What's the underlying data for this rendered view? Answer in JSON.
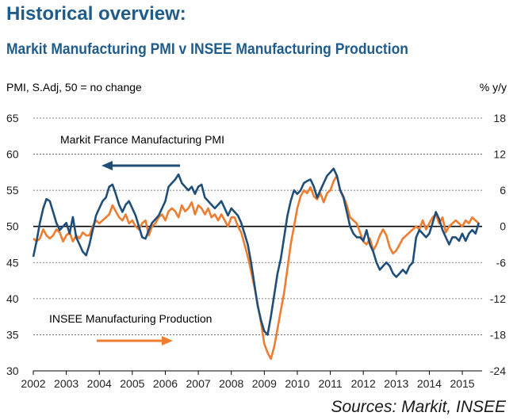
{
  "header": {
    "title": "Historical overview:",
    "subtitle": "Markit Manufacturing PMI v INSEE Manufacturing Production"
  },
  "footer": {
    "sources": "Sources: Markit, INSEE"
  },
  "colors": {
    "title": "#1f5c8b",
    "pmi": "#1f4e79",
    "insee": "#ed7d31",
    "grid": "#555555",
    "zero": "#000000"
  },
  "chart_data": {
    "type": "line",
    "title": "Markit Manufacturing PMI v INSEE Manufacturing Production",
    "left_axis_label": "PMI, S.Adj, 50 = no change",
    "right_axis_label": "% y/y",
    "left_ylim": [
      30,
      65
    ],
    "right_ylim": [
      -24,
      18
    ],
    "left_ticks": [
      "65",
      "60",
      "55",
      "50",
      "45",
      "40",
      "35",
      "30"
    ],
    "right_ticks": [
      "18",
      "12",
      "6",
      "0",
      "-6",
      "-12",
      "-18",
      "-24"
    ],
    "x_ticks": [
      "2002",
      "2003",
      "2004",
      "2005",
      "2006",
      "2007",
      "2008",
      "2009",
      "2010",
      "2011",
      "2012",
      "2013",
      "2014",
      "2015"
    ],
    "x_range": [
      2002.0,
      2015.6
    ],
    "grid": "horizontal dashed",
    "annotations": [
      {
        "text": "Markit France Manufacturing PMI",
        "arrow": "left"
      },
      {
        "text": "INSEE Manufacturing Production",
        "arrow": "right"
      }
    ],
    "series": [
      {
        "name": "Markit France Manufacturing PMI",
        "axis": "left",
        "points": [
          [
            2002.0,
            45.8
          ],
          [
            2002.1,
            48.0
          ],
          [
            2002.2,
            50.5
          ],
          [
            2002.3,
            52.5
          ],
          [
            2002.4,
            53.8
          ],
          [
            2002.5,
            53.5
          ],
          [
            2002.6,
            52.0
          ],
          [
            2002.7,
            50.5
          ],
          [
            2002.8,
            49.5
          ],
          [
            2002.9,
            50.0
          ],
          [
            2003.0,
            50.5
          ],
          [
            2003.1,
            49.0
          ],
          [
            2003.2,
            51.3
          ],
          [
            2003.3,
            48.5
          ],
          [
            2003.4,
            47.5
          ],
          [
            2003.5,
            46.5
          ],
          [
            2003.6,
            46.0
          ],
          [
            2003.7,
            47.5
          ],
          [
            2003.8,
            49.5
          ],
          [
            2003.9,
            51.5
          ],
          [
            2004.0,
            52.5
          ],
          [
            2004.1,
            53.5
          ],
          [
            2004.2,
            54.0
          ],
          [
            2004.3,
            55.5
          ],
          [
            2004.4,
            55.8
          ],
          [
            2004.5,
            54.5
          ],
          [
            2004.6,
            53.0
          ],
          [
            2004.7,
            52.0
          ],
          [
            2004.8,
            53.0
          ],
          [
            2004.9,
            53.5
          ],
          [
            2005.0,
            52.5
          ],
          [
            2005.1,
            51.5
          ],
          [
            2005.2,
            50.0
          ],
          [
            2005.3,
            48.5
          ],
          [
            2005.4,
            48.3
          ],
          [
            2005.5,
            49.5
          ],
          [
            2005.6,
            50.5
          ],
          [
            2005.7,
            51.0
          ],
          [
            2005.8,
            51.5
          ],
          [
            2005.9,
            52.5
          ],
          [
            2006.0,
            53.5
          ],
          [
            2006.1,
            55.5
          ],
          [
            2006.2,
            56.0
          ],
          [
            2006.3,
            56.5
          ],
          [
            2006.4,
            57.2
          ],
          [
            2006.5,
            56.0
          ],
          [
            2006.6,
            55.5
          ],
          [
            2006.7,
            55.0
          ],
          [
            2006.8,
            55.5
          ],
          [
            2006.9,
            54.5
          ],
          [
            2007.0,
            55.5
          ],
          [
            2007.1,
            55.8
          ],
          [
            2007.2,
            54.0
          ],
          [
            2007.3,
            53.5
          ],
          [
            2007.4,
            53.0
          ],
          [
            2007.5,
            52.5
          ],
          [
            2007.6,
            53.0
          ],
          [
            2007.7,
            53.5
          ],
          [
            2007.8,
            52.5
          ],
          [
            2007.9,
            51.5
          ],
          [
            2008.0,
            52.5
          ],
          [
            2008.1,
            52.0
          ],
          [
            2008.2,
            51.5
          ],
          [
            2008.3,
            50.5
          ],
          [
            2008.4,
            49.0
          ],
          [
            2008.5,
            47.5
          ],
          [
            2008.6,
            45.0
          ],
          [
            2008.7,
            42.0
          ],
          [
            2008.8,
            39.0
          ],
          [
            2008.9,
            37.0
          ],
          [
            2009.0,
            35.5
          ],
          [
            2009.1,
            35.0
          ],
          [
            2009.2,
            37.5
          ],
          [
            2009.3,
            40.5
          ],
          [
            2009.4,
            43.5
          ],
          [
            2009.5,
            45.5
          ],
          [
            2009.6,
            48.5
          ],
          [
            2009.7,
            51.5
          ],
          [
            2009.8,
            53.5
          ],
          [
            2009.9,
            55.0
          ],
          [
            2010.0,
            54.5
          ],
          [
            2010.1,
            55.0
          ],
          [
            2010.2,
            56.0
          ],
          [
            2010.3,
            56.3
          ],
          [
            2010.4,
            56.5
          ],
          [
            2010.5,
            55.5
          ],
          [
            2010.6,
            54.0
          ],
          [
            2010.7,
            55.0
          ],
          [
            2010.8,
            56.0
          ],
          [
            2010.9,
            57.0
          ],
          [
            2011.0,
            57.5
          ],
          [
            2011.1,
            58.0
          ],
          [
            2011.2,
            57.0
          ],
          [
            2011.3,
            55.0
          ],
          [
            2011.4,
            54.0
          ],
          [
            2011.5,
            52.0
          ],
          [
            2011.6,
            50.0
          ],
          [
            2011.7,
            49.0
          ],
          [
            2011.8,
            48.5
          ],
          [
            2011.9,
            48.5
          ],
          [
            2012.0,
            48.0
          ],
          [
            2012.1,
            49.5
          ],
          [
            2012.2,
            47.5
          ],
          [
            2012.3,
            46.5
          ],
          [
            2012.4,
            45.0
          ],
          [
            2012.5,
            44.0
          ],
          [
            2012.6,
            44.5
          ],
          [
            2012.7,
            45.0
          ],
          [
            2012.8,
            44.5
          ],
          [
            2012.9,
            43.5
          ],
          [
            2013.0,
            43.0
          ],
          [
            2013.1,
            43.5
          ],
          [
            2013.2,
            44.0
          ],
          [
            2013.3,
            43.5
          ],
          [
            2013.4,
            44.5
          ],
          [
            2013.5,
            45.0
          ],
          [
            2013.6,
            48.5
          ],
          [
            2013.7,
            49.5
          ],
          [
            2013.8,
            49.0
          ],
          [
            2013.9,
            48.5
          ],
          [
            2014.0,
            49.0
          ],
          [
            2014.1,
            50.5
          ],
          [
            2014.2,
            52.0
          ],
          [
            2014.3,
            51.0
          ],
          [
            2014.4,
            49.5
          ],
          [
            2014.5,
            48.5
          ],
          [
            2014.6,
            47.5
          ],
          [
            2014.7,
            48.5
          ],
          [
            2014.8,
            48.5
          ],
          [
            2014.9,
            48.0
          ],
          [
            2015.0,
            49.0
          ],
          [
            2015.1,
            48.0
          ],
          [
            2015.2,
            49.0
          ],
          [
            2015.3,
            49.5
          ],
          [
            2015.4,
            49.0
          ],
          [
            2015.5,
            50.5
          ]
        ]
      },
      {
        "name": "INSEE Manufacturing Production",
        "axis": "right",
        "points": [
          [
            2002.0,
            -2.0
          ],
          [
            2002.1,
            -2.5
          ],
          [
            2002.2,
            -2.0
          ],
          [
            2002.3,
            -0.5
          ],
          [
            2002.4,
            -1.5
          ],
          [
            2002.5,
            -2.0
          ],
          [
            2002.6,
            -1.5
          ],
          [
            2002.7,
            -0.5
          ],
          [
            2002.8,
            -1.0
          ],
          [
            2002.9,
            -2.5
          ],
          [
            2003.0,
            -1.5
          ],
          [
            2003.1,
            -1.0
          ],
          [
            2003.2,
            -2.5
          ],
          [
            2003.3,
            -1.5
          ],
          [
            2003.4,
            -2.0
          ],
          [
            2003.5,
            -1.0
          ],
          [
            2003.6,
            -1.5
          ],
          [
            2003.7,
            -1.5
          ],
          [
            2003.8,
            0.0
          ],
          [
            2003.9,
            1.0
          ],
          [
            2004.0,
            0.5
          ],
          [
            2004.1,
            1.0
          ],
          [
            2004.2,
            1.5
          ],
          [
            2004.3,
            2.0
          ],
          [
            2004.4,
            3.5
          ],
          [
            2004.5,
            2.5
          ],
          [
            2004.6,
            1.5
          ],
          [
            2004.7,
            1.0
          ],
          [
            2004.8,
            2.0
          ],
          [
            2004.9,
            0.5
          ],
          [
            2005.0,
            1.0
          ],
          [
            2005.1,
            0.0
          ],
          [
            2005.2,
            -0.5
          ],
          [
            2005.3,
            0.5
          ],
          [
            2005.4,
            1.0
          ],
          [
            2005.5,
            -1.5
          ],
          [
            2005.6,
            0.0
          ],
          [
            2005.7,
            0.5
          ],
          [
            2005.8,
            1.5
          ],
          [
            2005.9,
            2.0
          ],
          [
            2006.0,
            1.0
          ],
          [
            2006.1,
            2.5
          ],
          [
            2006.2,
            3.0
          ],
          [
            2006.3,
            2.5
          ],
          [
            2006.4,
            1.5
          ],
          [
            2006.5,
            3.5
          ],
          [
            2006.6,
            2.5
          ],
          [
            2006.7,
            3.0
          ],
          [
            2006.8,
            4.0
          ],
          [
            2006.9,
            2.0
          ],
          [
            2007.0,
            3.5
          ],
          [
            2007.1,
            3.0
          ],
          [
            2007.2,
            2.0
          ],
          [
            2007.3,
            3.0
          ],
          [
            2007.4,
            1.5
          ],
          [
            2007.5,
            2.0
          ],
          [
            2007.6,
            1.0
          ],
          [
            2007.7,
            2.0
          ],
          [
            2007.8,
            1.0
          ],
          [
            2007.9,
            0.0
          ],
          [
            2008.0,
            1.5
          ],
          [
            2008.1,
            1.5
          ],
          [
            2008.2,
            0.0
          ],
          [
            2008.3,
            -1.0
          ],
          [
            2008.4,
            -3.0
          ],
          [
            2008.5,
            -5.0
          ],
          [
            2008.6,
            -7.5
          ],
          [
            2008.7,
            -10.0
          ],
          [
            2008.8,
            -13.0
          ],
          [
            2008.9,
            -16.0
          ],
          [
            2009.0,
            -19.5
          ],
          [
            2009.1,
            -21.0
          ],
          [
            2009.2,
            -22.0
          ],
          [
            2009.3,
            -20.0
          ],
          [
            2009.4,
            -17.0
          ],
          [
            2009.5,
            -14.0
          ],
          [
            2009.6,
            -11.0
          ],
          [
            2009.7,
            -7.0
          ],
          [
            2009.8,
            -3.0
          ],
          [
            2009.9,
            0.0
          ],
          [
            2010.0,
            3.0
          ],
          [
            2010.1,
            5.0
          ],
          [
            2010.2,
            6.0
          ],
          [
            2010.3,
            5.5
          ],
          [
            2010.4,
            6.5
          ],
          [
            2010.5,
            5.0
          ],
          [
            2010.6,
            4.5
          ],
          [
            2010.7,
            5.5
          ],
          [
            2010.8,
            4.0
          ],
          [
            2010.9,
            5.5
          ],
          [
            2011.0,
            6.0
          ],
          [
            2011.1,
            7.5
          ],
          [
            2011.2,
            8.5
          ],
          [
            2011.3,
            6.0
          ],
          [
            2011.4,
            5.0
          ],
          [
            2011.5,
            3.5
          ],
          [
            2011.6,
            1.5
          ],
          [
            2011.7,
            1.0
          ],
          [
            2011.8,
            0.5
          ],
          [
            2011.9,
            -1.0
          ],
          [
            2012.0,
            -2.5
          ],
          [
            2012.1,
            -3.0
          ],
          [
            2012.2,
            -2.0
          ],
          [
            2012.3,
            -4.0
          ],
          [
            2012.4,
            -3.0
          ],
          [
            2012.5,
            -1.5
          ],
          [
            2012.6,
            -0.5
          ],
          [
            2012.7,
            -1.5
          ],
          [
            2012.8,
            -3.5
          ],
          [
            2012.9,
            -4.5
          ],
          [
            2013.0,
            -4.0
          ],
          [
            2013.1,
            -3.0
          ],
          [
            2013.2,
            -2.0
          ],
          [
            2013.3,
            -1.5
          ],
          [
            2013.4,
            -1.0
          ],
          [
            2013.5,
            -0.5
          ],
          [
            2013.6,
            0.0
          ],
          [
            2013.7,
            -0.5
          ],
          [
            2013.8,
            1.0
          ],
          [
            2013.9,
            -0.5
          ],
          [
            2014.0,
            0.5
          ],
          [
            2014.1,
            1.5
          ],
          [
            2014.2,
            2.0
          ],
          [
            2014.3,
            0.5
          ],
          [
            2014.4,
            1.5
          ],
          [
            2014.5,
            -1.0
          ],
          [
            2014.6,
            0.0
          ],
          [
            2014.7,
            0.5
          ],
          [
            2014.8,
            1.0
          ],
          [
            2014.9,
            0.5
          ],
          [
            2015.0,
            0.0
          ],
          [
            2015.1,
            1.0
          ],
          [
            2015.2,
            0.5
          ],
          [
            2015.3,
            1.5
          ],
          [
            2015.4,
            1.0
          ],
          [
            2015.5,
            0.5
          ]
        ]
      }
    ]
  }
}
